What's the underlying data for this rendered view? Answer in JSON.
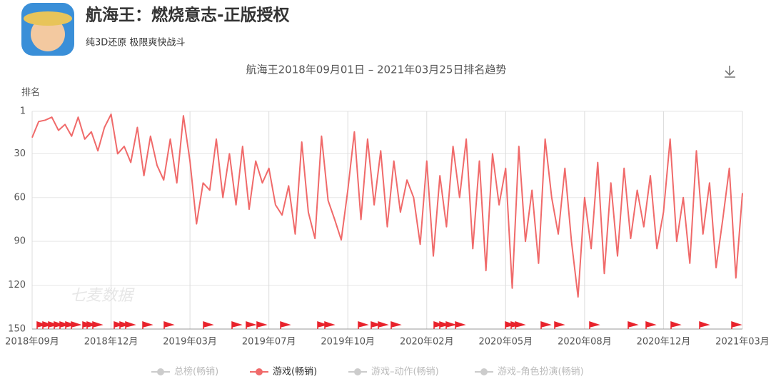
{
  "header": {
    "title": "航海王：燃烧意志-正版授权",
    "subtitle": "纯3D还原 极限爽快战斗"
  },
  "chart_data": {
    "type": "line",
    "title": "航海王2018年09月01日 – 2021年03月25日排名趋势",
    "y_label": "排名",
    "watermark": "七麦数据",
    "categories": [
      "2018年09月",
      null,
      null,
      null,
      null,
      null,
      null,
      null,
      null,
      null,
      null,
      null,
      "2018年12月",
      null,
      null,
      null,
      null,
      null,
      null,
      null,
      null,
      null,
      null,
      null,
      "2019年03月",
      null,
      null,
      null,
      null,
      null,
      null,
      null,
      null,
      null,
      null,
      null,
      "2019年07月",
      null,
      null,
      null,
      null,
      null,
      null,
      null,
      null,
      null,
      null,
      null,
      "2019年10月",
      null,
      null,
      null,
      null,
      null,
      null,
      null,
      null,
      null,
      null,
      null,
      "2020年02月",
      null,
      null,
      null,
      null,
      null,
      null,
      null,
      null,
      null,
      null,
      null,
      "2020年05月",
      null,
      null,
      null,
      null,
      null,
      null,
      null,
      null,
      null,
      null,
      null,
      "2020年08月",
      null,
      null,
      null,
      null,
      null,
      null,
      null,
      null,
      null,
      null,
      null,
      "2020年12月",
      null,
      null,
      null,
      null,
      null,
      null,
      null,
      null,
      null,
      null,
      null,
      "2021年03月"
    ],
    "series": [
      {
        "name": "总榜(畅销)",
        "color": "#cccccc",
        "visible": false
      },
      {
        "name": "游戏(畅销)",
        "color": "#f06a6a",
        "visible": true,
        "values": [
          19,
          8,
          7,
          5,
          14,
          10,
          18,
          5,
          20,
          15,
          28,
          12,
          3,
          30,
          25,
          36,
          12,
          45,
          18,
          38,
          48,
          20,
          50,
          4,
          35,
          78,
          50,
          55,
          20,
          60,
          30,
          65,
          25,
          68,
          35,
          50,
          40,
          65,
          72,
          52,
          85,
          22,
          70,
          88,
          18,
          62,
          75,
          89,
          55,
          15,
          75,
          20,
          65,
          28,
          80,
          35,
          70,
          48,
          60,
          92,
          35,
          100,
          45,
          80,
          25,
          60,
          20,
          95,
          35,
          110,
          30,
          65,
          40,
          122,
          25,
          90,
          55,
          105,
          20,
          60,
          85,
          40,
          90,
          128,
          60,
          95,
          36,
          112,
          50,
          100,
          40,
          88,
          55,
          80,
          45,
          95,
          70,
          20,
          90,
          60,
          105,
          28,
          85,
          50,
          108,
          75,
          40,
          115,
          57
        ]
      },
      {
        "name": "游戏–动作(畅销)",
        "color": "#cccccc",
        "visible": false
      },
      {
        "name": "游戏–角色扮演(畅销)",
        "color": "#cccccc",
        "visible": false
      }
    ],
    "ylim": [
      1,
      150
    ],
    "y_reversed": true,
    "yticks": [
      1,
      30,
      60,
      90,
      120,
      150
    ],
    "grid": true
  }
}
